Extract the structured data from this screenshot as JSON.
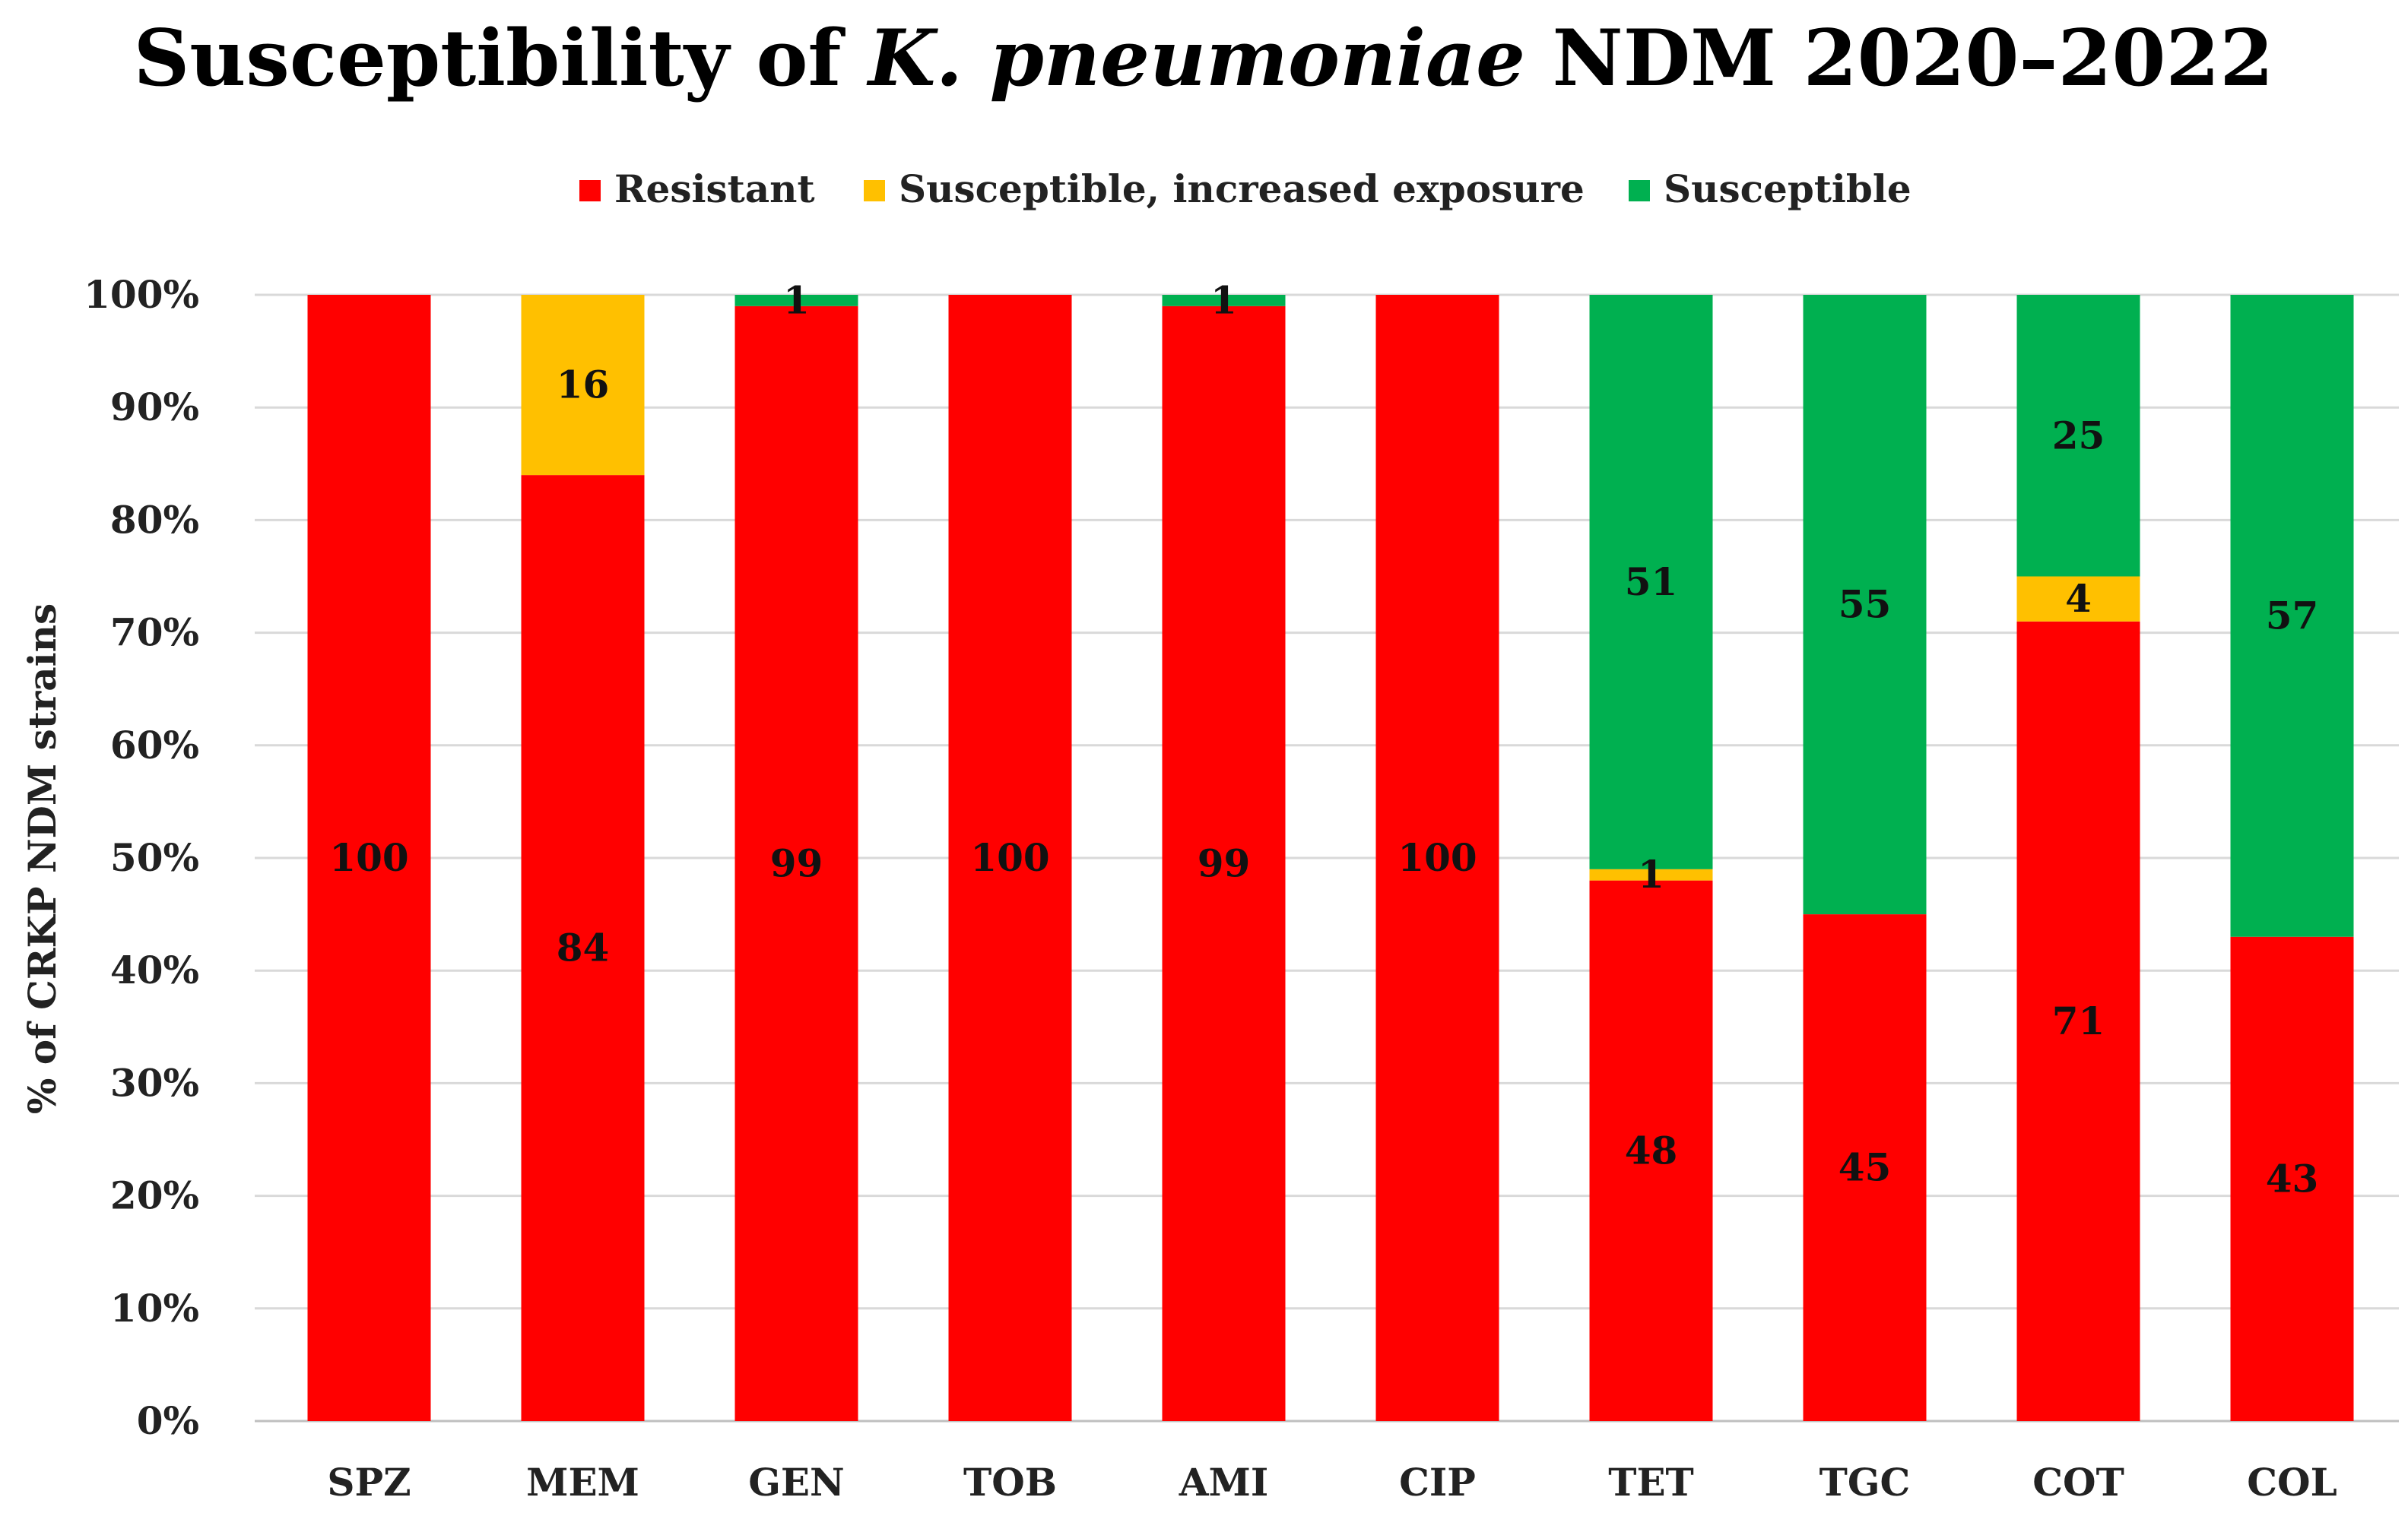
{
  "chart_data": {
    "type": "bar",
    "stacked": true,
    "title": {
      "prefix": "Susceptibility of ",
      "species": "K. pneumoniae",
      "suffix": " NDM 2020–2022"
    },
    "ylabel": "% of CRKP NDM strains",
    "xlabel": "",
    "ylim": [
      0,
      100
    ],
    "y_ticks": [
      "0%",
      "10%",
      "20%",
      "30%",
      "40%",
      "50%",
      "60%",
      "70%",
      "80%",
      "90%",
      "100%"
    ],
    "grid": true,
    "legend_position": "top",
    "categories": [
      "SPZ",
      "MEM",
      "GEN",
      "TOB",
      "AMI",
      "CIP",
      "TET",
      "TGC",
      "COT",
      "COL"
    ],
    "series": [
      {
        "name": "Resistant",
        "color": "#ff0000",
        "values": [
          100,
          84,
          99,
          100,
          99,
          100,
          48,
          45,
          71,
          43
        ]
      },
      {
        "name": "Susceptible, increased exposure",
        "color": "#ffc000",
        "values": [
          0,
          16,
          0,
          0,
          0,
          0,
          1,
          0,
          4,
          0
        ]
      },
      {
        "name": "Susceptible",
        "color": "#00b050",
        "values": [
          0,
          0,
          1,
          0,
          1,
          0,
          51,
          55,
          25,
          57
        ]
      }
    ]
  }
}
